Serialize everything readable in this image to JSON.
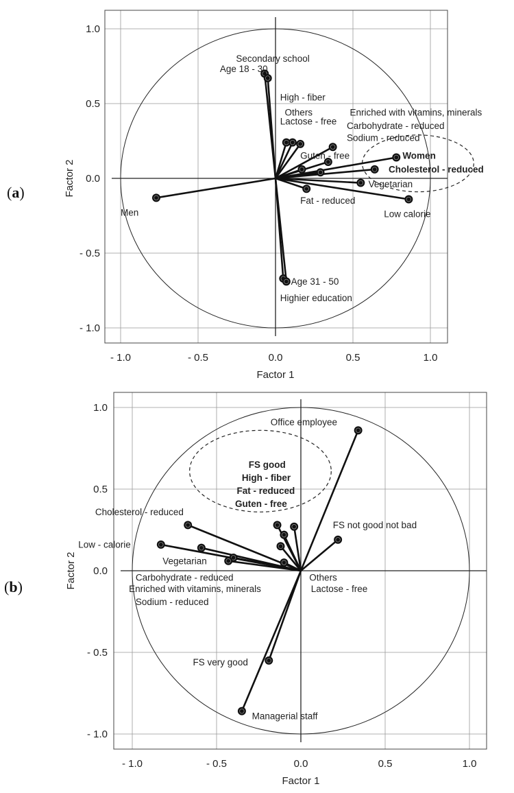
{
  "chart_data": [
    {
      "type": "scatter",
      "panel": "(a)",
      "xlabel": "Factor 1",
      "ylabel": "Factor 2",
      "xlim": [
        -1.1,
        1.1
      ],
      "ylim": [
        -1.1,
        1.1
      ],
      "x_ticks": [
        "- 1.0",
        "- 0.5",
        "0.0",
        "0.5",
        "1.0"
      ],
      "y_ticks": [
        "1.0",
        "0.5",
        "0.0",
        "- 0.5",
        "- 1.0"
      ],
      "grid": true,
      "points": [
        {
          "x": -0.07,
          "y": 0.7
        },
        {
          "x": -0.05,
          "y": 0.67
        },
        {
          "x": 0.07,
          "y": 0.24
        },
        {
          "x": 0.11,
          "y": 0.24
        },
        {
          "x": 0.16,
          "y": 0.23
        },
        {
          "x": 0.37,
          "y": 0.21
        },
        {
          "x": 0.34,
          "y": 0.11
        },
        {
          "x": 0.17,
          "y": 0.06
        },
        {
          "x": 0.29,
          "y": 0.04
        },
        {
          "x": 0.64,
          "y": 0.06
        },
        {
          "x": 0.78,
          "y": 0.14
        },
        {
          "x": 0.55,
          "y": -0.03
        },
        {
          "x": 0.86,
          "y": -0.14
        },
        {
          "x": 0.2,
          "y": -0.07
        },
        {
          "x": -0.77,
          "y": -0.13
        },
        {
          "x": 0.05,
          "y": -0.67
        },
        {
          "x": 0.07,
          "y": -0.69
        }
      ],
      "labels": [
        {
          "text": "Secondary school",
          "x": 0.22,
          "y": 0.78,
          "anchor": "end",
          "bold": false
        },
        {
          "text": "Age 18 - 30",
          "x": -0.05,
          "y": 0.71,
          "anchor": "end",
          "bold": false
        },
        {
          "text": "High - fiber",
          "x": 0.03,
          "y": 0.52,
          "anchor": "start",
          "bold": false
        },
        {
          "text": "Others",
          "x": 0.06,
          "y": 0.42,
          "anchor": "start",
          "bold": false
        },
        {
          "text": "Lactose - free",
          "x": 0.03,
          "y": 0.36,
          "anchor": "start",
          "bold": false
        },
        {
          "text": "Enriched with vitamins, minerals",
          "x": 0.48,
          "y": 0.42,
          "anchor": "start",
          "bold": false
        },
        {
          "text": "Carbohydrate - reduced",
          "x": 0.46,
          "y": 0.33,
          "anchor": "start",
          "bold": false
        },
        {
          "text": "Sodium - reduced",
          "x": 0.46,
          "y": 0.25,
          "anchor": "start",
          "bold": false
        },
        {
          "text": "Guten - free",
          "x": 0.16,
          "y": 0.13,
          "anchor": "start",
          "bold": false
        },
        {
          "text": "Women",
          "x": 0.82,
          "y": 0.13,
          "anchor": "start",
          "bold": true
        },
        {
          "text": "Cholesterol - reduced",
          "x": 0.73,
          "y": 0.04,
          "anchor": "start",
          "bold": true
        },
        {
          "text": "Vegetarian",
          "x": 0.6,
          "y": -0.06,
          "anchor": "start",
          "bold": false
        },
        {
          "text": "Fat - reduced",
          "x": 0.16,
          "y": -0.17,
          "anchor": "start",
          "bold": false
        },
        {
          "text": "Low calorie",
          "x": 0.7,
          "y": -0.26,
          "anchor": "start",
          "bold": false
        },
        {
          "text": "Men",
          "x": -1.0,
          "y": -0.25,
          "anchor": "start",
          "bold": false
        },
        {
          "text": "Age 31 - 50",
          "x": 0.1,
          "y": -0.71,
          "anchor": "start",
          "bold": false
        },
        {
          "text": "Highier education",
          "x": 0.03,
          "y": -0.82,
          "anchor": "start",
          "bold": false
        }
      ],
      "ellipse": {
        "cx": 0.92,
        "cy": 0.1,
        "rx": 0.36,
        "ry": 0.19
      }
    },
    {
      "type": "scatter",
      "panel": "(b)",
      "xlabel": "Factor 1",
      "ylabel": "Factor 2",
      "xlim": [
        -1.1,
        1.1
      ],
      "ylim": [
        -1.1,
        1.1
      ],
      "x_ticks": [
        "- 1.0",
        "- 0.5",
        "0.0",
        "0.5",
        "1.0"
      ],
      "y_ticks": [
        "1.0",
        "0.5",
        "0.0",
        "- 0.5",
        "- 1.0"
      ],
      "grid": true,
      "points": [
        {
          "x": 0.34,
          "y": 0.86
        },
        {
          "x": 0.22,
          "y": 0.19
        },
        {
          "x": -0.67,
          "y": 0.28
        },
        {
          "x": -0.83,
          "y": 0.16
        },
        {
          "x": -0.59,
          "y": 0.14
        },
        {
          "x": -0.4,
          "y": 0.08
        },
        {
          "x": -0.43,
          "y": 0.06
        },
        {
          "x": -0.14,
          "y": 0.28
        },
        {
          "x": -0.04,
          "y": 0.27
        },
        {
          "x": -0.1,
          "y": 0.22
        },
        {
          "x": -0.12,
          "y": 0.15
        },
        {
          "x": -0.1,
          "y": 0.05
        },
        {
          "x": -0.19,
          "y": -0.55
        },
        {
          "x": -0.35,
          "y": -0.86
        }
      ],
      "labels": [
        {
          "text": "Office employee",
          "x": -0.18,
          "y": 0.89,
          "anchor": "start",
          "bold": false
        },
        {
          "text": "FS good",
          "x": -0.31,
          "y": 0.63,
          "anchor": "start",
          "bold": true
        },
        {
          "text": "High - fiber",
          "x": -0.35,
          "y": 0.55,
          "anchor": "start",
          "bold": true
        },
        {
          "text": "Fat - reduced",
          "x": -0.38,
          "y": 0.47,
          "anchor": "start",
          "bold": true
        },
        {
          "text": "Guten - free",
          "x": -0.39,
          "y": 0.39,
          "anchor": "start",
          "bold": true
        },
        {
          "text": "Cholesterol - reduced",
          "x": -1.22,
          "y": 0.34,
          "anchor": "start",
          "bold": false
        },
        {
          "text": "FS not good not bad",
          "x": 0.19,
          "y": 0.26,
          "anchor": "start",
          "bold": false
        },
        {
          "text": "Low - calorie",
          "x": -1.32,
          "y": 0.14,
          "anchor": "start",
          "bold": false
        },
        {
          "text": "Vegetarian",
          "x": -0.82,
          "y": 0.04,
          "anchor": "start",
          "bold": false
        },
        {
          "text": "Carbohydrate - reduced",
          "x": -0.98,
          "y": -0.06,
          "anchor": "start",
          "bold": false
        },
        {
          "text": "Enriched with vitamins, minerals",
          "x": -1.02,
          "y": -0.13,
          "anchor": "start",
          "bold": false
        },
        {
          "text": "Sodium - reduced",
          "x": -0.98,
          "y": -0.21,
          "anchor": "start",
          "bold": false
        },
        {
          "text": "Others",
          "x": 0.05,
          "y": -0.06,
          "anchor": "start",
          "bold": false
        },
        {
          "text": "Lactose - free",
          "x": 0.06,
          "y": -0.13,
          "anchor": "start",
          "bold": false
        },
        {
          "text": "FS very good",
          "x": -0.64,
          "y": -0.58,
          "anchor": "start",
          "bold": false
        },
        {
          "text": "Managerial staff",
          "x": -0.29,
          "y": -0.91,
          "anchor": "start",
          "bold": false
        }
      ],
      "ellipse": {
        "cx": -0.24,
        "cy": 0.61,
        "rx": 0.42,
        "ry": 0.25
      }
    }
  ]
}
